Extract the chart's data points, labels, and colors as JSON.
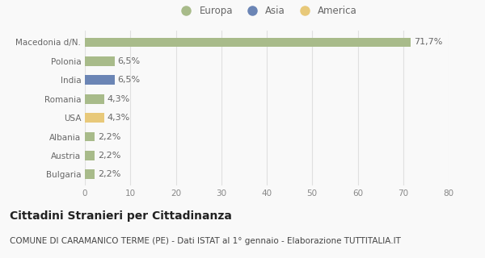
{
  "categories": [
    "Macedonia d/N.",
    "Polonia",
    "India",
    "Romania",
    "USA",
    "Albania",
    "Austria",
    "Bulgaria"
  ],
  "values": [
    71.7,
    6.5,
    6.5,
    4.3,
    4.3,
    2.2,
    2.2,
    2.2
  ],
  "labels": [
    "71,7%",
    "6,5%",
    "6,5%",
    "4,3%",
    "4,3%",
    "2,2%",
    "2,2%",
    "2,2%"
  ],
  "colors": [
    "#a8bb8a",
    "#a8bb8a",
    "#6b85b5",
    "#a8bb8a",
    "#e8c97a",
    "#a8bb8a",
    "#a8bb8a",
    "#a8bb8a"
  ],
  "legend_items": [
    {
      "label": "Europa",
      "color": "#a8bb8a"
    },
    {
      "label": "Asia",
      "color": "#6b85b5"
    },
    {
      "label": "America",
      "color": "#e8c97a"
    }
  ],
  "xlim": [
    0,
    80
  ],
  "xticks": [
    0,
    10,
    20,
    30,
    40,
    50,
    60,
    70,
    80
  ],
  "title": "Cittadini Stranieri per Cittadinanza",
  "subtitle": "COMUNE DI CARAMANICO TERME (PE) - Dati ISTAT al 1° gennaio - Elaborazione TUTTITALIA.IT",
  "background_color": "#f9f9f9",
  "grid_color": "#e0e0e0",
  "bar_height": 0.5,
  "title_fontsize": 10,
  "subtitle_fontsize": 7.5,
  "label_fontsize": 8,
  "tick_fontsize": 7.5,
  "legend_fontsize": 8.5
}
